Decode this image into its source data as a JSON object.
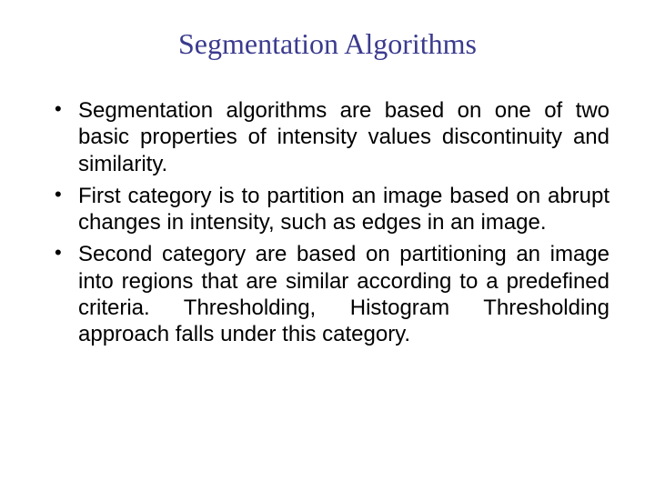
{
  "slide": {
    "title": "Segmentation Algorithms",
    "title_color": "#3b3b8f",
    "title_fontsize": 32,
    "body_fontsize": 24,
    "body_color": "#000000",
    "background_color": "#ffffff",
    "bullets": [
      "Segmentation algorithms are based on one of two basic properties of intensity values discontinuity and similarity.",
      "First category is to partition an image based on abrupt changes in intensity, such as edges in an image.",
      "Second category are based on partitioning an image into regions that are similar according to a predefined criteria. Thresholding, Histogram Thresholding approach falls under this category."
    ]
  }
}
